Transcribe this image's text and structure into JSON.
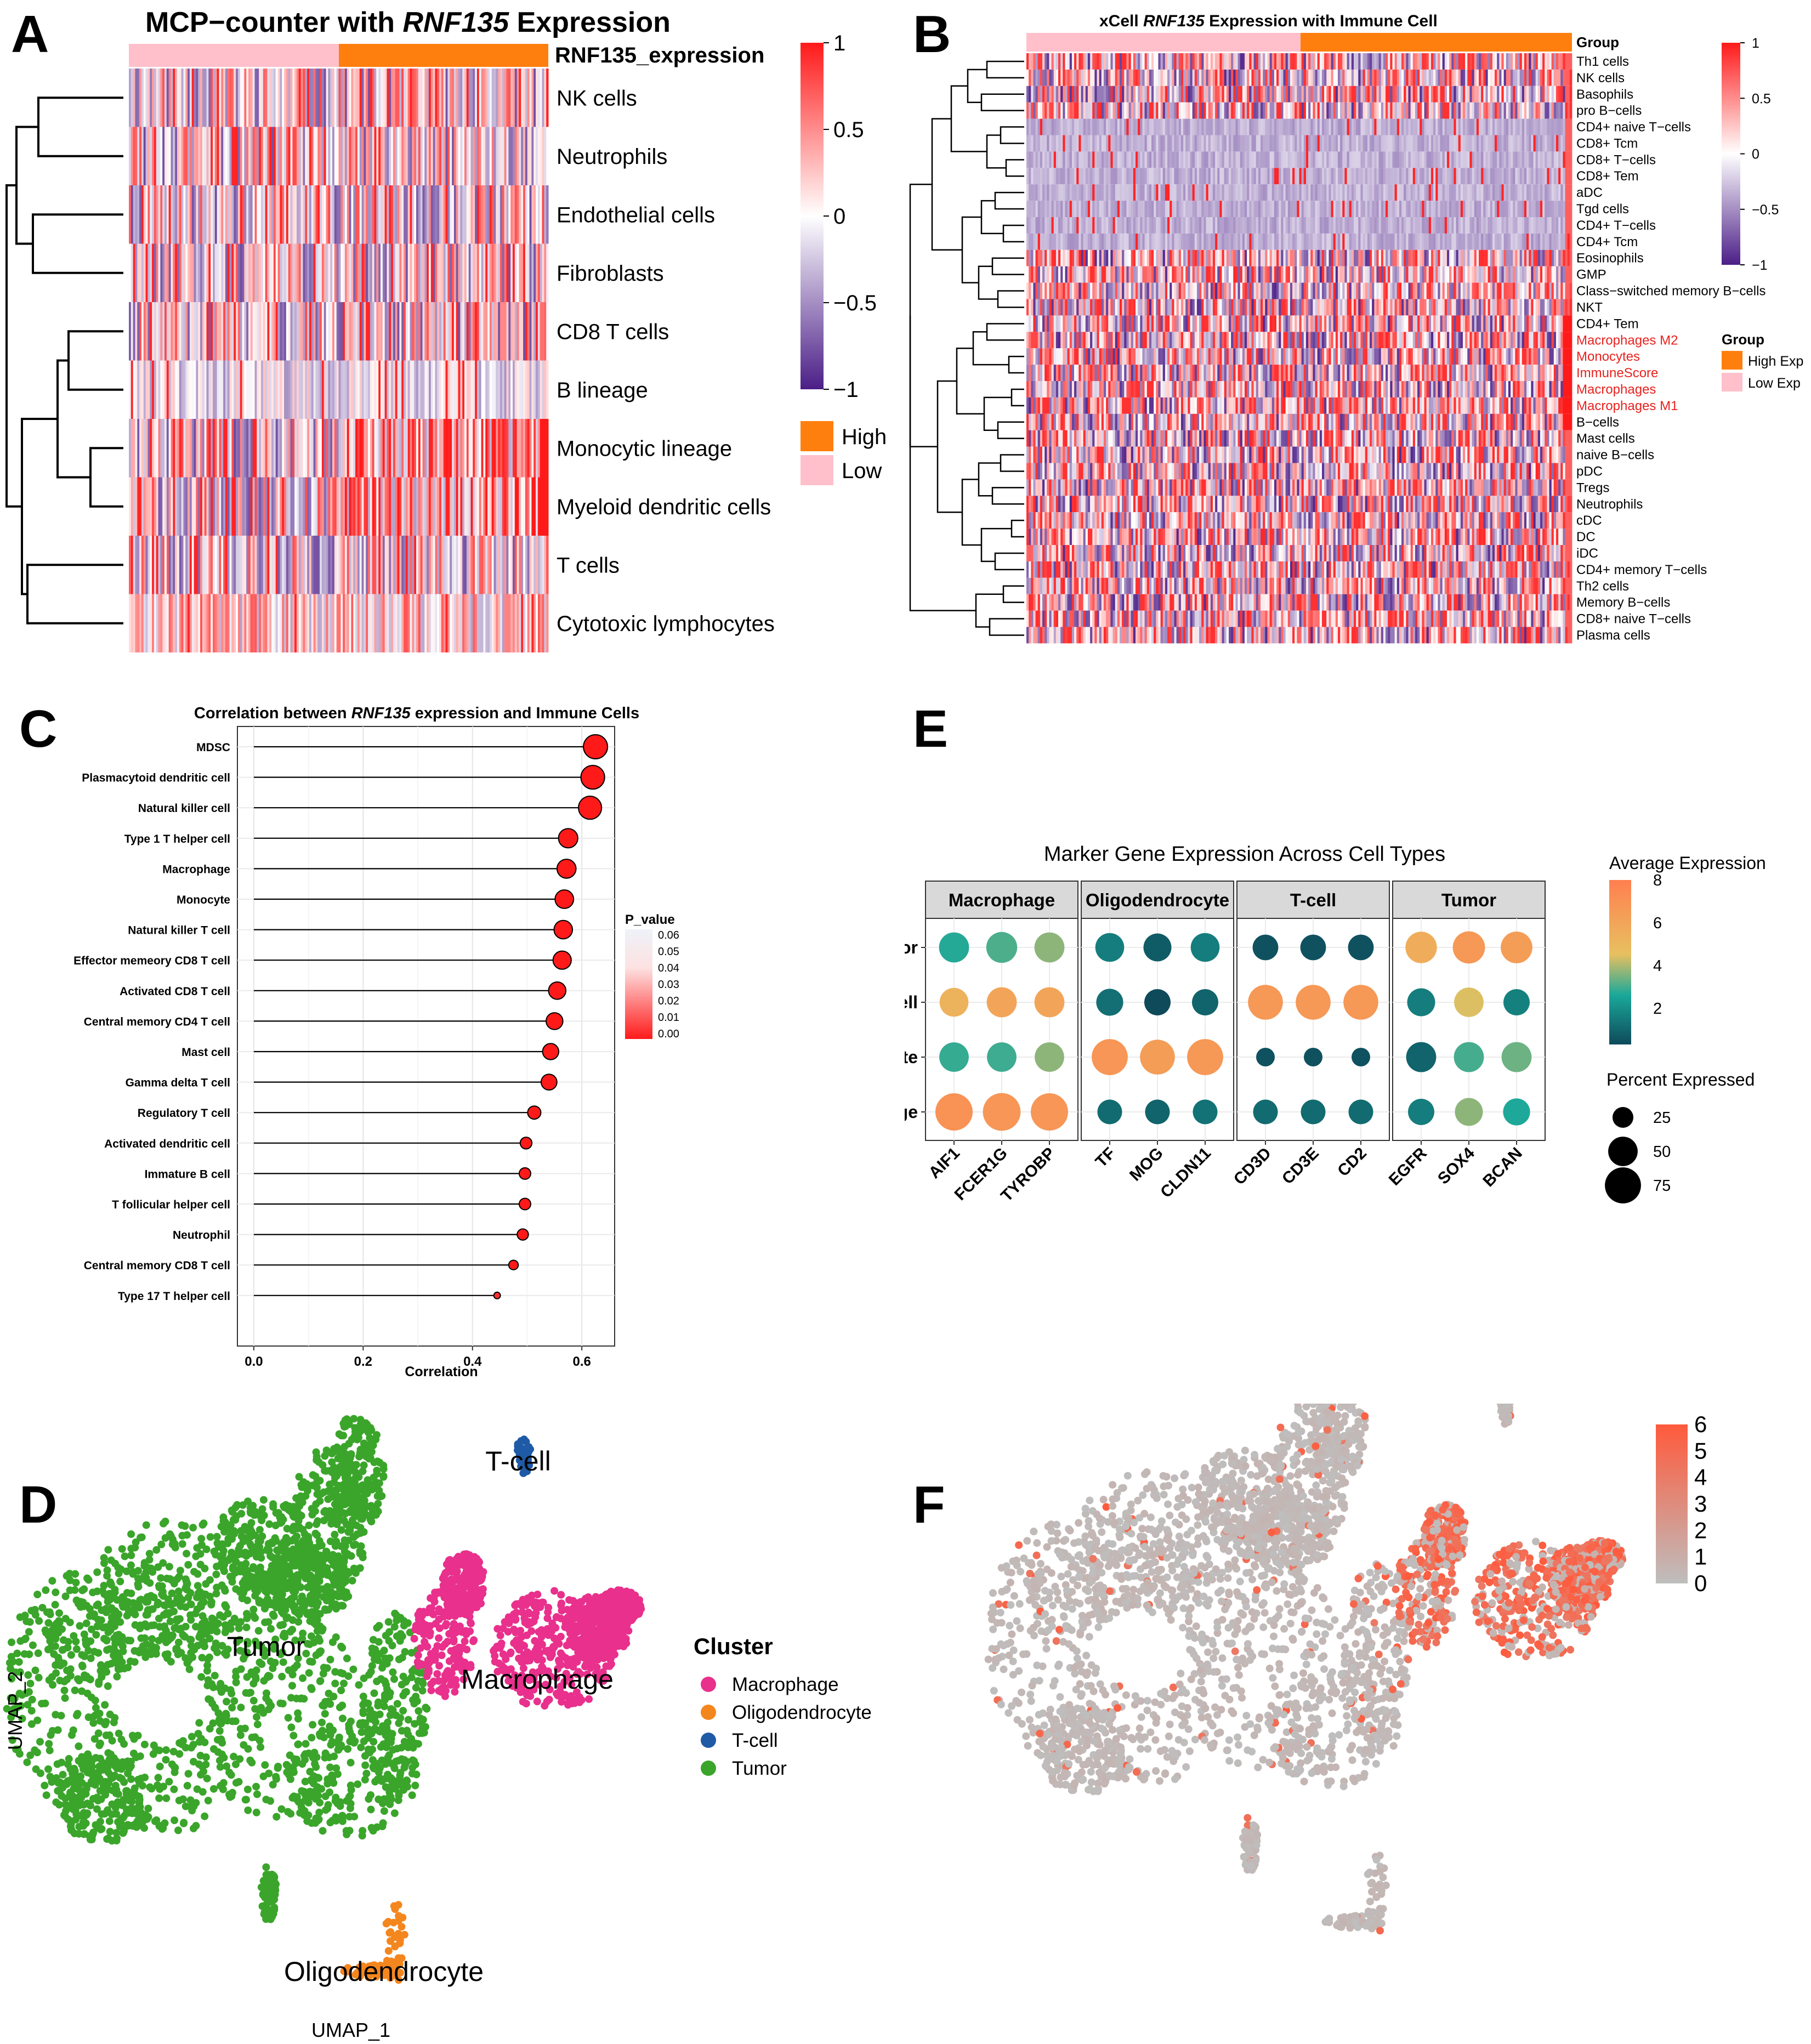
{
  "panel_labels": {
    "A": "A",
    "B": "B",
    "C": "C",
    "D": "D",
    "E": "E",
    "F": "F"
  },
  "chart_data": [
    {
      "panel": "A",
      "type": "heatmap",
      "title_prefix": "MCP−counter with ",
      "title_gene": "RNF135",
      "title_suffix": " Expression",
      "annotation_label": "RNF135_expression",
      "rows": [
        "NK cells",
        "Neutrophils",
        "Endothelial cells",
        "Fibroblasts",
        "CD8 T cells",
        "B lineage",
        "Monocytic lineage",
        "Myeloid dendritic cells",
        "T cells",
        "Cytotoxic lymphocytes"
      ],
      "row_order_note": "clustered",
      "group_legend": [
        {
          "name": "High",
          "color": "#FF7F0E"
        },
        {
          "name": "Low",
          "color": "#FFC0CB"
        }
      ],
      "colorbar": {
        "ticks": [
          "1",
          "0.5",
          "0",
          "−0.5",
          "−1"
        ],
        "range": [
          -1,
          1
        ],
        "low": "#4B1E87",
        "mid": "#FFFFFF",
        "high": "#FF1A1A"
      }
    },
    {
      "panel": "B",
      "type": "heatmap",
      "title_prefix": "xCell ",
      "title_gene": "RNF135",
      "title_suffix": " Expression with Immune Cell",
      "annotation_label": "Group",
      "rows": [
        "Th1 cells",
        "NK cells",
        "Basophils",
        "pro B−cells",
        "CD4+ naive T−cells",
        "CD8+ Tcm",
        "CD8+ T−cells",
        "CD8+ Tem",
        "aDC",
        "Tgd cells",
        "CD4+ T−cells",
        "CD4+ Tcm",
        "Eosinophils",
        "GMP",
        "Class−switched memory B−cells",
        "NKT",
        "CD4+ Tem",
        "Macrophages M2",
        "Monocytes",
        "ImmuneScore",
        "Macrophages",
        "Macrophages M1",
        "B−cells",
        "Mast cells",
        "naive B−cells",
        "pDC",
        "Tregs",
        "Neutrophils",
        "cDC",
        "DC",
        "iDC",
        "CD4+ memory T−cells",
        "Th2 cells",
        "Memory B−cells",
        "CD8+ naive T−cells",
        "Plasma cells"
      ],
      "highlighted_rows": [
        "Macrophages M2",
        "Monocytes",
        "ImmuneScore",
        "Macrophages",
        "Macrophages M1"
      ],
      "highlight_color": "#E8221E",
      "group_legend_title": "Group",
      "group_legend": [
        {
          "name": "High Exp",
          "color": "#FF7F0E"
        },
        {
          "name": "Low Exp",
          "color": "#FFC0CB"
        }
      ],
      "colorbar": {
        "ticks": [
          "1",
          "0.5",
          "0",
          "−0.5",
          "−1"
        ],
        "range": [
          -1,
          1
        ],
        "low": "#4B1E87",
        "mid": "#FFFFFF",
        "high": "#FF1A1A"
      }
    },
    {
      "panel": "C",
      "type": "lollipop",
      "title_prefix": "Correlation between ",
      "title_gene": "RNF135",
      "title_suffix": " expression and Immune Cells",
      "xlabel": "Correlation",
      "xlim": [
        -0.03,
        0.66
      ],
      "xticks": [
        0.0,
        0.2,
        0.4,
        0.6
      ],
      "xtick_labels": [
        "0.0",
        "0.2",
        "0.4",
        "0.6"
      ],
      "categories": [
        "MDSC",
        "Plasmacytoid dendritic cell",
        "Natural killer cell",
        "Type 1 T helper cell",
        "Macrophage",
        "Monocyte",
        "Natural killer T cell",
        "Effector memeory CD8 T cell",
        "Activated CD8 T cell",
        "Central memory CD4 T cell",
        "Mast cell",
        "Gamma delta T cell",
        "Regulatory T cell",
        "Activated dendritic cell",
        "Immature  B cell",
        "T follicular helper cell",
        "Neutrophil",
        "Central memory CD8 T cell",
        "Type 17 T helper cell"
      ],
      "values": [
        0.625,
        0.62,
        0.615,
        0.575,
        0.572,
        0.568,
        0.566,
        0.564,
        0.555,
        0.55,
        0.543,
        0.54,
        0.513,
        0.498,
        0.496,
        0.496,
        0.492,
        0.475,
        0.445
      ],
      "p_values": [
        0,
        0,
        0,
        0,
        0,
        0,
        0,
        0,
        0,
        0,
        0,
        0,
        0,
        0,
        0,
        0,
        0,
        0,
        0.001
      ],
      "size_values": [
        0.625,
        0.62,
        0.615,
        0.575,
        0.572,
        0.568,
        0.566,
        0.564,
        0.555,
        0.55,
        0.543,
        0.54,
        0.513,
        0.498,
        0.496,
        0.496,
        0.492,
        0.475,
        0.445
      ],
      "legend_title": "P_value",
      "legend_ticks": [
        "0.06",
        "0.05",
        "0.04",
        "0.03",
        "0.02",
        "0.01",
        "0.00"
      ],
      "legend_range": [
        0,
        0.06
      ],
      "grid": true
    },
    {
      "panel": "D",
      "type": "scatter",
      "subtype": "umap",
      "xlabel": "UMAP_1",
      "ylabel": "UMAP_2",
      "legend_title": "Cluster",
      "clusters": [
        {
          "name": "Macrophage",
          "color": "#E8308C"
        },
        {
          "name": "Oligodendrocyte",
          "color": "#F4861E"
        },
        {
          "name": "T-cell",
          "color": "#1F5AA6"
        },
        {
          "name": "Tumor",
          "color": "#3AA52A"
        }
      ],
      "cluster_labels": [
        "T-cell",
        "Tumor",
        "Macrophage",
        "Oligodendrocyte"
      ]
    },
    {
      "panel": "E",
      "type": "dotplot",
      "title": "Marker Gene Expression Across Cell Types",
      "facets": [
        "Macrophage",
        "Oligodendrocyte",
        "T-cell",
        "Tumor"
      ],
      "genes": [
        [
          "AIF1",
          "FCER1G",
          "TYROBP"
        ],
        [
          "TF",
          "MOG",
          "CLDN11"
        ],
        [
          "CD3D",
          "CD3E",
          "CD2"
        ],
        [
          "EGFR",
          "SOX4",
          "BCAN"
        ]
      ],
      "rows": [
        "Tumor",
        "T-cell",
        "Oligodendrocyte",
        "Macrophage"
      ],
      "avg_expression": [
        [
          3,
          3.5,
          4.3,
          1.7,
          0.8,
          1.7,
          0.5,
          0.5,
          0.5,
          6.2,
          7.0,
          6.8
        ],
        [
          6.0,
          6.5,
          6.5,
          1.3,
          0.3,
          1.0,
          7.0,
          7.0,
          7.0,
          1.7,
          5.3,
          1.8
        ],
        [
          3.2,
          3.3,
          4.3,
          7.1,
          6.8,
          7.0,
          0.5,
          0.5,
          0.5,
          1.0,
          3.4,
          3.9
        ],
        [
          7.2,
          7.1,
          7.1,
          1.2,
          1.0,
          1.4,
          1.2,
          1.2,
          1.2,
          1.7,
          4.3,
          2.9
        ]
      ],
      "pct_expressed": [
        [
          52,
          55,
          52,
          48,
          45,
          48,
          38,
          38,
          38,
          57,
          60,
          58
        ],
        [
          48,
          52,
          52,
          42,
          40,
          40,
          70,
          70,
          70,
          45,
          50,
          40
        ],
        [
          50,
          50,
          50,
          75,
          70,
          75,
          20,
          20,
          20,
          52,
          52,
          52
        ],
        [
          80,
          82,
          80,
          35,
          35,
          35,
          35,
          35,
          35,
          40,
          45,
          42
        ]
      ],
      "color_legend_title": "Average Expression",
      "color_ticks": [
        "8",
        "6",
        "4",
        "2"
      ],
      "color_range": [
        0.3,
        8
      ],
      "color_stops": [
        "#0E4A5A",
        "#1AA89A",
        "#E8C060",
        "#FF7F50"
      ],
      "size_legend_title": "Percent Expressed",
      "size_legend": [
        {
          "label": "25",
          "value": 25
        },
        {
          "label": "50",
          "value": 50
        },
        {
          "label": "75",
          "value": 75
        }
      ]
    },
    {
      "panel": "F",
      "type": "scatter",
      "subtype": "umap_feature",
      "colorbar_ticks": [
        "6",
        "5",
        "4",
        "3",
        "2",
        "1",
        "0"
      ],
      "colorbar_range": [
        0,
        6
      ],
      "low_color": "#BEBEBE",
      "high_color": "#FF5A3C"
    }
  ]
}
